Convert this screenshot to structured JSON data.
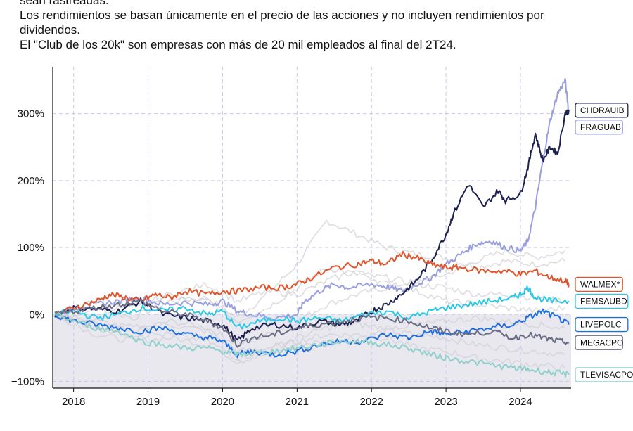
{
  "notes": {
    "line0": "sean rastreadas.",
    "line1": "Los rendimientos se basan únicamente en el precio de las acciones y no incluyen rendimientos por",
    "line2": "dividendos.",
    "line3": "El \"Club de los 20k\" son empresas con más de 20 mil empleados al final del 2T24."
  },
  "chart_data": {
    "type": "line",
    "x_unit": "year",
    "xlim": [
      2017.72,
      2024.68
    ],
    "ylim": [
      -110,
      370
    ],
    "x_ticks": [
      2018,
      2019,
      2020,
      2021,
      2022,
      2023,
      2024
    ],
    "x_tick_labels": [
      "2018",
      "2019",
      "2020",
      "2021",
      "2022",
      "2023",
      "2024"
    ],
    "y_ticks": [
      -100,
      0,
      100,
      200,
      300
    ],
    "y_tick_labels": [
      "−100%",
      "0%",
      "100%",
      "200%",
      "300%"
    ],
    "grid": true,
    "zero_band": true,
    "series": [
      {
        "name": "",
        "role": "background",
        "color": "#cfcfd4",
        "x": [
          2017.75,
          2018.3,
          2018.8,
          2019.3,
          2019.8,
          2020.2,
          2020.6,
          2021.0,
          2021.4,
          2021.8,
          2022.2,
          2022.6,
          2023.0,
          2023.4,
          2023.8,
          2024.2,
          2024.6
        ],
        "y": [
          0,
          10,
          -5,
          20,
          25,
          -5,
          30,
          75,
          140,
          120,
          100,
          90,
          85,
          70,
          80,
          75,
          80
        ]
      },
      {
        "name": "",
        "role": "background",
        "color": "#cfcfd4",
        "x": [
          2017.75,
          2018.3,
          2018.8,
          2019.3,
          2019.8,
          2020.2,
          2020.6,
          2021.0,
          2021.4,
          2021.8,
          2022.2,
          2022.6,
          2023.0,
          2023.4,
          2023.8,
          2024.2,
          2024.6
        ],
        "y": [
          0,
          -15,
          -25,
          -10,
          -20,
          -45,
          -30,
          -10,
          15,
          30,
          40,
          50,
          60,
          80,
          95,
          85,
          95
        ]
      },
      {
        "name": "",
        "role": "background",
        "color": "#cfcfd4",
        "x": [
          2017.75,
          2018.3,
          2018.8,
          2019.3,
          2019.8,
          2020.2,
          2020.6,
          2021.0,
          2021.4,
          2021.8,
          2022.2,
          2022.6,
          2023.0,
          2023.4,
          2023.8,
          2024.2,
          2024.6
        ],
        "y": [
          0,
          -30,
          -40,
          -35,
          -45,
          -70,
          -60,
          -45,
          -40,
          -35,
          -25,
          -30,
          -35,
          -45,
          -50,
          -55,
          -60
        ]
      },
      {
        "name": "",
        "role": "background",
        "color": "#cfcfd4",
        "x": [
          2017.75,
          2018.3,
          2018.8,
          2019.3,
          2019.8,
          2020.2,
          2020.6,
          2021.0,
          2021.4,
          2021.8,
          2022.2,
          2022.6,
          2023.0,
          2023.4,
          2023.8,
          2024.2,
          2024.6
        ],
        "y": [
          0,
          5,
          15,
          25,
          20,
          -10,
          10,
          40,
          70,
          60,
          55,
          45,
          40,
          30,
          30,
          25,
          20
        ]
      },
      {
        "name": "",
        "role": "background",
        "color": "#cfcfd4",
        "x": [
          2017.75,
          2018.3,
          2018.8,
          2019.3,
          2019.8,
          2020.2,
          2020.6,
          2021.0,
          2021.4,
          2021.8,
          2022.2,
          2022.6,
          2023.0,
          2023.4,
          2023.8,
          2024.2,
          2024.6
        ],
        "y": [
          0,
          -10,
          -20,
          -15,
          -25,
          -55,
          -50,
          -40,
          -30,
          -30,
          -35,
          -50,
          -55,
          -65,
          -70,
          -75,
          -80
        ]
      },
      {
        "name": "",
        "role": "background",
        "color": "#cfcfd4",
        "x": [
          2017.75,
          2018.3,
          2018.8,
          2019.3,
          2019.8,
          2020.2,
          2020.6,
          2021.0,
          2021.4,
          2021.8,
          2022.2,
          2022.6,
          2023.0,
          2023.4,
          2023.8,
          2024.2,
          2024.6
        ],
        "y": [
          0,
          20,
          10,
          30,
          45,
          20,
          35,
          30,
          50,
          65,
          45,
          35,
          20,
          15,
          10,
          5,
          10
        ]
      },
      {
        "name": "",
        "role": "background",
        "color": "#cfcfd4",
        "x": [
          2017.75,
          2018.3,
          2018.8,
          2019.3,
          2019.8,
          2020.2,
          2020.6,
          2021.0,
          2021.4,
          2021.8,
          2022.2,
          2022.6,
          2023.0,
          2023.4,
          2023.8,
          2024.2,
          2024.6
        ],
        "y": [
          0,
          -20,
          -30,
          -30,
          -40,
          -65,
          -55,
          -35,
          -20,
          -15,
          -20,
          -15,
          -10,
          -5,
          -10,
          -15,
          -20
        ]
      },
      {
        "name": "FRAGUAB",
        "color": "#9a9fe0",
        "label_color": "#9a9fe0",
        "x": [
          2017.75,
          2018.0,
          2018.3,
          2018.6,
          2018.9,
          2019.2,
          2019.5,
          2019.8,
          2020.0,
          2020.2,
          2020.4,
          2020.7,
          2021.0,
          2021.1,
          2021.3,
          2021.5,
          2021.7,
          2022.0,
          2022.2,
          2022.4,
          2022.6,
          2022.8,
          2023.0,
          2023.2,
          2023.4,
          2023.6,
          2023.8,
          2024.0,
          2024.1,
          2024.2,
          2024.3,
          2024.4,
          2024.5,
          2024.6,
          2024.65
        ],
        "y": [
          0,
          10,
          15,
          20,
          25,
          15,
          18,
          15,
          20,
          5,
          0,
          -5,
          0,
          20,
          35,
          45,
          40,
          45,
          42,
          35,
          45,
          55,
          75,
          90,
          105,
          110,
          100,
          95,
          110,
          160,
          230,
          290,
          330,
          350,
          300
        ]
      },
      {
        "name": "CHDRAUIB",
        "color": "#1c2150",
        "label_color": "#1c2150",
        "x": [
          2017.75,
          2018.0,
          2018.3,
          2018.6,
          2018.9,
          2019.2,
          2019.5,
          2019.8,
          2020.0,
          2020.2,
          2020.4,
          2020.7,
          2021.0,
          2021.3,
          2021.6,
          2021.8,
          2022.0,
          2022.2,
          2022.4,
          2022.6,
          2022.8,
          2023.0,
          2023.1,
          2023.3,
          2023.5,
          2023.7,
          2023.8,
          2024.0,
          2024.1,
          2024.2,
          2024.3,
          2024.4,
          2024.5,
          2024.6,
          2024.65
        ],
        "y": [
          0,
          10,
          8,
          5,
          20,
          0,
          -5,
          -10,
          -15,
          -40,
          -20,
          -15,
          -20,
          -10,
          -15,
          -10,
          5,
          15,
          30,
          50,
          80,
          120,
          150,
          195,
          160,
          185,
          170,
          180,
          220,
          270,
          230,
          250,
          240,
          300,
          305
        ]
      },
      {
        "name": "WALMEX*",
        "color": "#e0552b",
        "label_color": "#e0552b",
        "x": [
          2017.75,
          2018.0,
          2018.3,
          2018.5,
          2018.7,
          2018.9,
          2019.1,
          2019.3,
          2019.5,
          2019.8,
          2020.0,
          2020.2,
          2020.5,
          2020.8,
          2021.0,
          2021.2,
          2021.5,
          2021.8,
          2022.0,
          2022.2,
          2022.4,
          2022.6,
          2022.8,
          2023.0,
          2023.2,
          2023.5,
          2023.8,
          2024.0,
          2024.2,
          2024.4,
          2024.6,
          2024.65
        ],
        "y": [
          0,
          10,
          20,
          30,
          25,
          20,
          30,
          25,
          35,
          30,
          35,
          35,
          40,
          40,
          45,
          55,
          70,
          75,
          80,
          75,
          90,
          85,
          75,
          70,
          70,
          65,
          65,
          60,
          65,
          55,
          50,
          45
        ]
      },
      {
        "name": "FEMSAUBD",
        "color": "#2cc8e8",
        "label_color": "#2cc8e8",
        "x": [
          2017.75,
          2018.0,
          2018.3,
          2018.6,
          2018.9,
          2019.2,
          2019.5,
          2019.8,
          2020.0,
          2020.2,
          2020.5,
          2020.8,
          2021.0,
          2021.3,
          2021.6,
          2021.9,
          2022.2,
          2022.5,
          2022.8,
          2023.0,
          2023.3,
          2023.6,
          2023.9,
          2024.0,
          2024.1,
          2024.2,
          2024.4,
          2024.65
        ],
        "y": [
          0,
          5,
          -5,
          0,
          10,
          5,
          10,
          0,
          5,
          -20,
          -10,
          -5,
          -10,
          -5,
          -10,
          0,
          5,
          -5,
          5,
          10,
          15,
          20,
          25,
          30,
          40,
          25,
          20,
          20
        ]
      },
      {
        "name": "LIVEPOLC",
        "color": "#1f6fe0",
        "label_color": "#1f6fe0",
        "x": [
          2017.75,
          2018.0,
          2018.3,
          2018.6,
          2018.9,
          2019.2,
          2019.5,
          2019.8,
          2020.0,
          2020.2,
          2020.4,
          2020.7,
          2021.0,
          2021.3,
          2021.6,
          2021.9,
          2022.2,
          2022.5,
          2022.8,
          2023.0,
          2023.3,
          2023.6,
          2023.9,
          2024.1,
          2024.3,
          2024.5,
          2024.65
        ],
        "y": [
          0,
          -10,
          -15,
          -20,
          -25,
          -20,
          -30,
          -35,
          -40,
          -60,
          -55,
          -60,
          -55,
          -45,
          -40,
          -40,
          -30,
          -35,
          -25,
          -30,
          -25,
          -20,
          -15,
          -5,
          5,
          -5,
          -15
        ]
      },
      {
        "name": "MEGACPO",
        "color": "#6b6d86",
        "label_color": "#6b6d86",
        "x": [
          2017.75,
          2018.0,
          2018.3,
          2018.6,
          2018.9,
          2019.2,
          2019.5,
          2019.8,
          2020.0,
          2020.2,
          2020.4,
          2020.7,
          2021.0,
          2021.3,
          2021.6,
          2021.9,
          2022.2,
          2022.5,
          2022.8,
          2023.0,
          2023.3,
          2023.6,
          2023.9,
          2024.1,
          2024.3,
          2024.5,
          2024.65
        ],
        "y": [
          0,
          5,
          10,
          15,
          20,
          5,
          0,
          -10,
          -20,
          -45,
          -35,
          -30,
          -20,
          -15,
          -10,
          -5,
          -5,
          -10,
          -20,
          -25,
          -30,
          -25,
          -35,
          -30,
          -35,
          -40,
          -42
        ]
      },
      {
        "name": "TLEVISACPO",
        "color": "#8fd0cc",
        "label_color": "#8fd0cc",
        "x": [
          2017.75,
          2018.0,
          2018.3,
          2018.6,
          2018.9,
          2019.2,
          2019.5,
          2019.8,
          2020.0,
          2020.2,
          2020.4,
          2020.7,
          2021.0,
          2021.3,
          2021.6,
          2021.9,
          2022.2,
          2022.5,
          2022.8,
          2023.0,
          2023.3,
          2023.6,
          2023.9,
          2024.1,
          2024.3,
          2024.5,
          2024.65
        ],
        "y": [
          0,
          -10,
          -20,
          -25,
          -40,
          -45,
          -50,
          -50,
          -55,
          -60,
          -58,
          -55,
          -50,
          -45,
          -40,
          -40,
          -45,
          -50,
          -60,
          -65,
          -70,
          -75,
          -80,
          -82,
          -85,
          -88,
          -90
        ]
      }
    ]
  }
}
